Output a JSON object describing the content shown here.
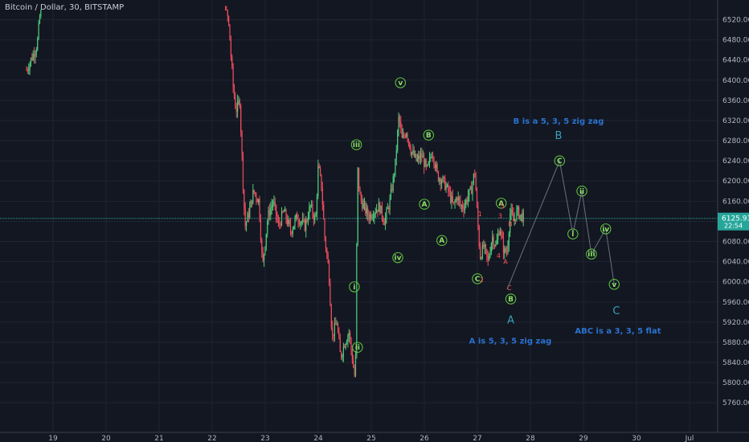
{
  "chart_title": "Bitcoin / Dollar, 30, BITSTAMP",
  "last_price": "6125.93",
  "countdown": "22:54",
  "colors": {
    "background": "#131722",
    "up": "#4fc97a",
    "down": "#ef4d5e",
    "wave_green": "#5cbf3c",
    "wave_red": "#ff5555",
    "note_blue": "#2a72cf",
    "big_label": "#38a0b8",
    "price_badge": "#26a69a"
  },
  "chart_data": {
    "type": "candlestick",
    "symbol": "BTC/USD",
    "x_ticks": [
      "19",
      "20",
      "21",
      "22",
      "23",
      "24",
      "25",
      "26",
      "27",
      "28",
      "29",
      "30",
      "Jul"
    ],
    "y_ticks": [
      5760,
      5800,
      5840,
      5880,
      5920,
      5960,
      6000,
      6040,
      6080,
      6120,
      6160,
      6200,
      6240,
      6280,
      6320,
      6360,
      6400,
      6440,
      6480,
      6520
    ],
    "ylim": [
      5730,
      6540
    ],
    "price_line": 6125.93,
    "close_path": [
      [
        18.5,
        6420
      ],
      [
        18.62,
        6450
      ],
      [
        18.7,
        6470
      ],
      [
        18.78,
        6560
      ],
      [
        22.25,
        6560
      ],
      [
        22.32,
        6500
      ],
      [
        22.4,
        6380
      ],
      [
        22.45,
        6340
      ],
      [
        22.52,
        6360
      ],
      [
        22.58,
        6200
      ],
      [
        22.62,
        6110
      ],
      [
        22.7,
        6140
      ],
      [
        22.78,
        6180
      ],
      [
        22.88,
        6160
      ],
      [
        22.95,
        6030
      ],
      [
        23.05,
        6130
      ],
      [
        23.15,
        6160
      ],
      [
        23.25,
        6110
      ],
      [
        23.35,
        6140
      ],
      [
        23.48,
        6100
      ],
      [
        23.6,
        6130
      ],
      [
        23.75,
        6110
      ],
      [
        23.85,
        6150
      ],
      [
        23.95,
        6120
      ],
      [
        24.0,
        6230
      ],
      [
        24.06,
        6190
      ],
      [
        24.12,
        6090
      ],
      [
        24.2,
        6020
      ],
      [
        24.26,
        5890
      ],
      [
        24.35,
        5920
      ],
      [
        24.42,
        5850
      ],
      [
        24.5,
        5880
      ],
      [
        24.58,
        5900
      ],
      [
        24.64,
        5850
      ],
      [
        24.7,
        5800
      ],
      [
        24.74,
        6230
      ],
      [
        24.78,
        6170
      ],
      [
        24.85,
        6150
      ],
      [
        24.95,
        6130
      ],
      [
        25.05,
        6140
      ],
      [
        25.15,
        6150
      ],
      [
        25.25,
        6120
      ],
      [
        25.35,
        6160
      ],
      [
        25.45,
        6230
      ],
      [
        25.52,
        6330
      ],
      [
        25.58,
        6280
      ],
      [
        25.66,
        6300
      ],
      [
        25.75,
        6260
      ],
      [
        25.85,
        6240
      ],
      [
        25.95,
        6250
      ],
      [
        26.05,
        6220
      ],
      [
        26.15,
        6260
      ],
      [
        26.25,
        6210
      ],
      [
        26.35,
        6200
      ],
      [
        26.45,
        6180
      ],
      [
        26.55,
        6150
      ],
      [
        26.62,
        6170
      ],
      [
        26.68,
        6150
      ],
      [
        26.75,
        6150
      ],
      [
        26.82,
        6170
      ],
      [
        26.88,
        6180
      ],
      [
        26.95,
        6220
      ],
      [
        27.0,
        6130
      ],
      [
        27.05,
        6050
      ],
      [
        27.12,
        6070
      ],
      [
        27.2,
        6040
      ],
      [
        27.28,
        6090
      ],
      [
        27.35,
        6070
      ],
      [
        27.42,
        6110
      ],
      [
        27.5,
        6060
      ],
      [
        27.56,
        6060
      ],
      [
        27.62,
        6140
      ],
      [
        27.68,
        6120
      ],
      [
        27.75,
        6140
      ],
      [
        27.82,
        6130
      ],
      [
        27.88,
        6130
      ]
    ],
    "projection": [
      [
        27.56,
        5985
      ],
      [
        28.55,
        6240
      ],
      [
        28.8,
        6095
      ],
      [
        28.97,
        6180
      ],
      [
        29.15,
        6055
      ],
      [
        29.42,
        6105
      ],
      [
        29.58,
        5995
      ]
    ]
  },
  "wave_labels": {
    "green": [
      {
        "text": "v",
        "x": 25.55,
        "y": 6395
      },
      {
        "text": "iii",
        "x": 24.72,
        "y": 6272
      },
      {
        "text": "iv",
        "x": 25.5,
        "y": 6048
      },
      {
        "text": "i",
        "x": 24.68,
        "y": 5990
      },
      {
        "text": "ii",
        "x": 24.74,
        "y": 5870
      },
      {
        "text": "B",
        "x": 26.08,
        "y": 6291
      },
      {
        "text": "A",
        "x": 26.0,
        "y": 6154
      },
      {
        "text": "A",
        "x": 26.33,
        "y": 6082
      },
      {
        "text": "C",
        "x": 27.0,
        "y": 6006
      },
      {
        "text": "A",
        "x": 27.45,
        "y": 6156
      },
      {
        "text": "B",
        "x": 27.63,
        "y": 5966
      },
      {
        "text": "C",
        "x": 28.55,
        "y": 6240
      },
      {
        "text": "i",
        "x": 28.8,
        "y": 6095
      },
      {
        "text": "ii",
        "x": 28.97,
        "y": 6180
      },
      {
        "text": "iii",
        "x": 29.15,
        "y": 6055
      },
      {
        "text": "iv",
        "x": 29.42,
        "y": 6105
      },
      {
        "text": "v",
        "x": 29.58,
        "y": 5995
      }
    ],
    "red": [
      {
        "text": "1",
        "x": 27.05,
        "y": 6135
      },
      {
        "text": "2",
        "x": 27.08,
        "y": 6004
      },
      {
        "text": "3",
        "x": 27.43,
        "y": 6131
      },
      {
        "text": "4",
        "x": 27.4,
        "y": 6052
      },
      {
        "text": "5",
        "x": 27.47,
        "y": 6150
      },
      {
        "text": "A",
        "x": 27.53,
        "y": 6040
      },
      {
        "text": "B",
        "x": 27.62,
        "y": 6115
      },
      {
        "text": "C",
        "x": 27.6,
        "y": 5988
      }
    ]
  },
  "big_labels": [
    {
      "text": "B",
      "x": 28.53,
      "y": 6290
    },
    {
      "text": "A",
      "x": 27.63,
      "y": 5924
    },
    {
      "text": "C",
      "x": 29.62,
      "y": 5942
    }
  ],
  "notes": [
    {
      "text": "B is a 5, 3, 5 zig zag",
      "x": 28.53,
      "y": 6320
    },
    {
      "text": "A is 5, 3, 5 zig zag",
      "x": 27.62,
      "y": 5884
    },
    {
      "text": "ABC is a 3, 3, 5 flat",
      "x": 29.65,
      "y": 5904
    }
  ]
}
